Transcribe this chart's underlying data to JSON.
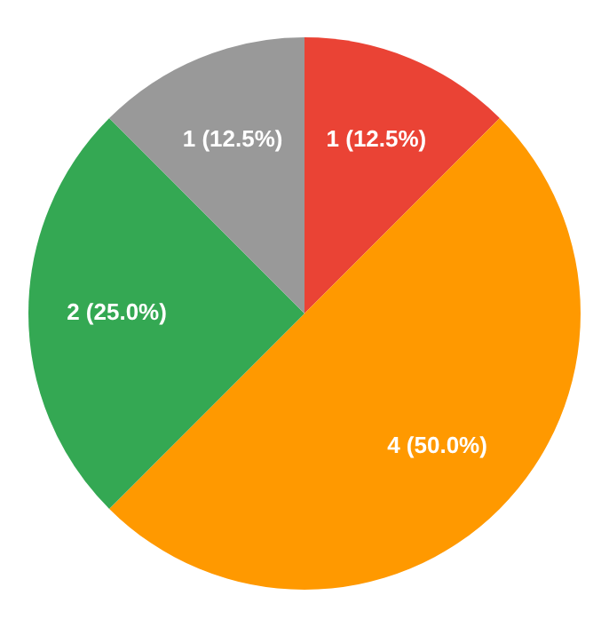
{
  "chart_data": {
    "type": "pie",
    "categories": [
      null,
      null,
      null,
      null
    ],
    "values": [
      1,
      4,
      2,
      1
    ],
    "colors": [
      "#ea4335",
      "#ff9900",
      "#34a853",
      "#999999"
    ],
    "value_labels": [
      "1 (12.5%)",
      "4 (50.0%)",
      "2 (25.0%)",
      "1 (12.5%)"
    ],
    "legend": false
  }
}
